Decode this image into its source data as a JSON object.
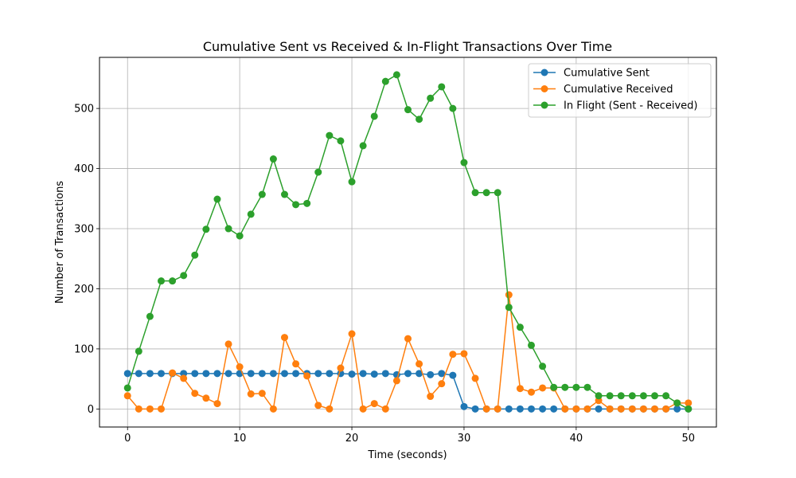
{
  "chart_data": {
    "type": "line",
    "title": "Cumulative Sent vs Received & In-Flight Transactions Over Time",
    "xlabel": "Time (seconds)",
    "ylabel": "Number of Transactions",
    "xlim": [
      -2.5,
      52.5
    ],
    "ylim": [
      -30,
      585
    ],
    "xticks": [
      0,
      10,
      20,
      30,
      40,
      50
    ],
    "yticks": [
      0,
      100,
      200,
      300,
      400,
      500
    ],
    "grid": true,
    "legend_position": "top-right",
    "x": [
      0,
      1,
      2,
      3,
      4,
      5,
      6,
      7,
      8,
      9,
      10,
      11,
      12,
      13,
      14,
      15,
      16,
      17,
      18,
      19,
      20,
      21,
      22,
      23,
      24,
      25,
      26,
      27,
      28,
      29,
      30,
      31,
      32,
      33,
      34,
      35,
      36,
      37,
      38,
      39,
      40,
      41,
      42,
      43,
      44,
      45,
      46,
      47,
      48,
      49,
      50
    ],
    "series": [
      {
        "name": "Cumulative Sent",
        "color": "#1f77b4",
        "values": [
          59,
          59,
          59,
          59,
          59,
          59,
          59,
          59,
          59,
          59,
          59,
          59,
          59,
          59,
          59,
          59,
          59,
          59,
          59,
          59,
          58,
          59,
          58,
          59,
          57,
          59,
          59,
          57,
          59,
          56,
          4,
          0,
          0,
          0,
          0,
          0,
          0,
          0,
          0,
          0,
          0,
          0,
          0,
          0,
          0,
          0,
          0,
          0,
          0,
          0,
          0
        ]
      },
      {
        "name": "Cumulative Received",
        "color": "#ff7f0e",
        "values": [
          22,
          0,
          0,
          0,
          60,
          51,
          26,
          18,
          9,
          108,
          70,
          25,
          26,
          0,
          119,
          75,
          55,
          6,
          0,
          68,
          125,
          0,
          9,
          0,
          47,
          117,
          75,
          21,
          42,
          91,
          92,
          51,
          0,
          0,
          190,
          34,
          28,
          35,
          35,
          0,
          0,
          0,
          14,
          0,
          0,
          0,
          0,
          0,
          0,
          10,
          10
        ]
      },
      {
        "name": "In Flight (Sent - Received)",
        "color": "#2ca02c",
        "values": [
          35,
          96,
          154,
          213,
          213,
          222,
          256,
          299,
          349,
          300,
          288,
          324,
          357,
          416,
          357,
          340,
          342,
          394,
          455,
          446,
          378,
          438,
          487,
          545,
          556,
          498,
          482,
          517,
          536,
          500,
          410,
          360,
          360,
          360,
          169,
          136,
          106,
          71,
          36,
          36,
          36,
          36,
          22,
          22,
          22,
          22,
          22,
          22,
          22,
          10,
          0
        ]
      }
    ]
  }
}
